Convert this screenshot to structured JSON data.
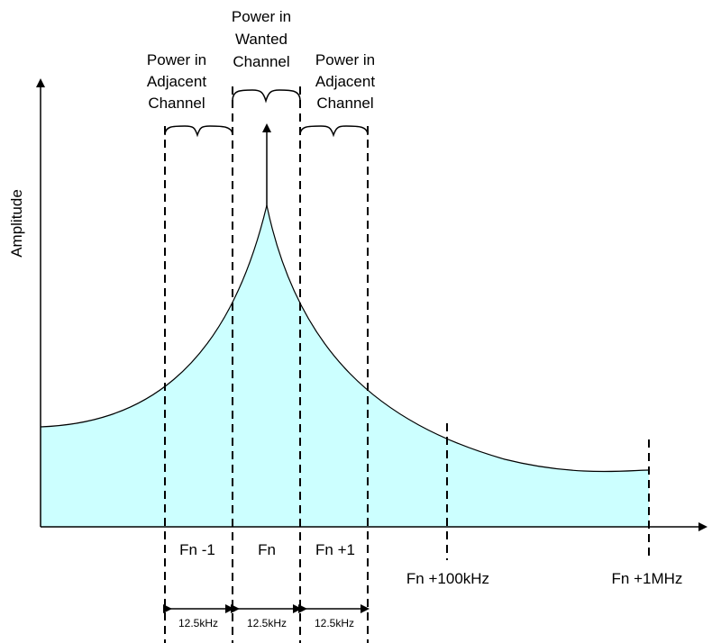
{
  "y_axis_label": "Amplitude",
  "regions": {
    "adjacent_left": [
      "Power in",
      "Adjacent",
      "Channel"
    ],
    "wanted": [
      "Power in",
      "Wanted",
      "Channel"
    ],
    "adjacent_right": [
      "Power in",
      "Adjacent",
      "Channel"
    ]
  },
  "channel_labels": {
    "fn_minus_1": "Fn -1",
    "fn": "Fn",
    "fn_plus_1": "Fn +1",
    "fn_plus_100khz": "Fn +100kHz",
    "fn_plus_1mhz": "Fn +1MHz"
  },
  "bandwidths": {
    "left": "12.5kHz",
    "center": "12.5kHz",
    "right": "12.5kHz"
  },
  "colors": {
    "spectrum_fill": "#ccffff",
    "lines": "#000000"
  }
}
